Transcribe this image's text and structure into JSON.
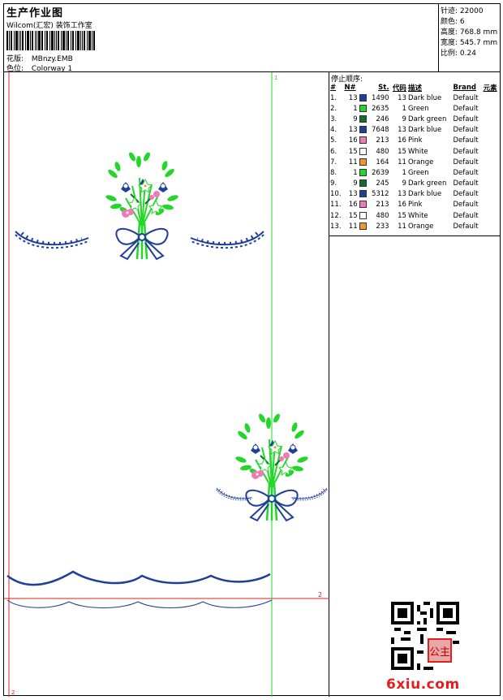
{
  "header": {
    "title": "生产作业图",
    "company": "Wilcom(汇宏) 装饰工作室",
    "design_label": "花版:",
    "design_value": "MBnzy.EMB",
    "colorway_label": "色位:",
    "colorway_value": "Colorway 1"
  },
  "info": {
    "stitches_label": "针迹:",
    "stitches_value": "22000",
    "colors_label": "颜色:",
    "colors_value": "6",
    "height_label": "高度:",
    "height_value": "768.8 mm",
    "width_label": "宽度:",
    "width_value": "545.7 mm",
    "scale_label": "比例:",
    "scale_value": "0.24"
  },
  "canvas": {
    "marker_top": "1",
    "marker_right": "2",
    "marker_bottom": "2"
  },
  "stop_sequence": {
    "title": "停止顺序:",
    "columns": [
      "#",
      "N#",
      "St.",
      "代码",
      "描述",
      "Brand",
      "元素"
    ],
    "rows": [
      {
        "idx": "1.",
        "n": "13",
        "color": "#1f3f9a",
        "st": "1490",
        "code": "13",
        "desc": "Dark blue",
        "brand": "Default"
      },
      {
        "idx": "2.",
        "n": "1",
        "color": "#22d62a",
        "st": "2635",
        "code": "1",
        "desc": "Green",
        "brand": "Default"
      },
      {
        "idx": "3.",
        "n": "9",
        "color": "#0e6e2e",
        "st": "246",
        "code": "9",
        "desc": "Dark green",
        "brand": "Default"
      },
      {
        "idx": "4.",
        "n": "13",
        "color": "#1f3f9a",
        "st": "7648",
        "code": "13",
        "desc": "Dark blue",
        "brand": "Default"
      },
      {
        "idx": "5.",
        "n": "16",
        "color": "#ee7ab6",
        "st": "213",
        "code": "16",
        "desc": "Pink",
        "brand": "Default"
      },
      {
        "idx": "6.",
        "n": "15",
        "color": "#ffffff",
        "st": "480",
        "code": "15",
        "desc": "White",
        "brand": "Default"
      },
      {
        "idx": "7.",
        "n": "11",
        "color": "#f0962b",
        "st": "164",
        "code": "11",
        "desc": "Orange",
        "brand": "Default"
      },
      {
        "idx": "8.",
        "n": "1",
        "color": "#22d62a",
        "st": "2639",
        "code": "1",
        "desc": "Green",
        "brand": "Default"
      },
      {
        "idx": "9.",
        "n": "9",
        "color": "#0e6e2e",
        "st": "245",
        "code": "9",
        "desc": "Dark green",
        "brand": "Default"
      },
      {
        "idx": "10.",
        "n": "13",
        "color": "#1f3f9a",
        "st": "5312",
        "code": "13",
        "desc": "Dark blue",
        "brand": "Default"
      },
      {
        "idx": "11.",
        "n": "16",
        "color": "#ee7ab6",
        "st": "213",
        "code": "16",
        "desc": "Pink",
        "brand": "Default"
      },
      {
        "idx": "12.",
        "n": "15",
        "color": "#ffffff",
        "st": "480",
        "code": "15",
        "desc": "White",
        "brand": "Default"
      },
      {
        "idx": "13.",
        "n": "11",
        "color": "#f0962b",
        "st": "233",
        "code": "11",
        "desc": "Orange",
        "brand": "Default"
      }
    ]
  },
  "watermark": "6xiu.com",
  "qr_seal_text": "公主"
}
